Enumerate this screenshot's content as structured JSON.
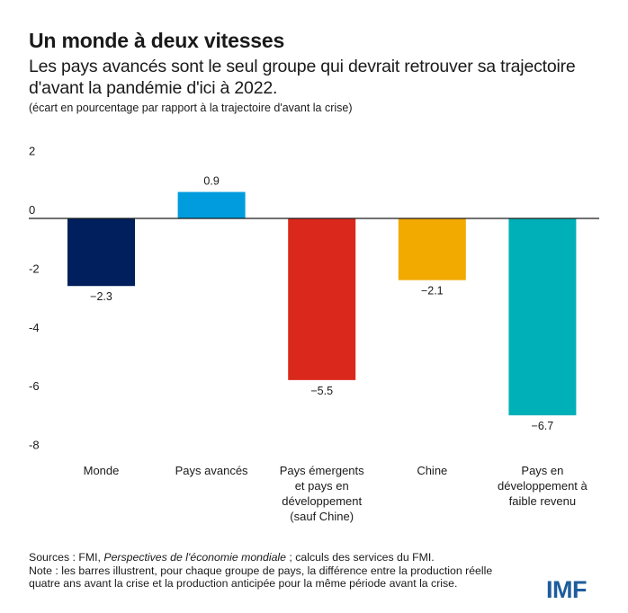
{
  "header": {
    "title": "Un monde à deux vitesses",
    "subtitle": "Les pays avancés sont le seul groupe qui devrait retrouver sa trajectoire d'avant la pandémie d'ici à 2022.",
    "unit_note": "(écart en pourcentage par rapport à la trajectoire d'avant la crise)"
  },
  "chart_data": {
    "type": "bar",
    "title": "Un monde à deux vitesses",
    "xlabel": "",
    "ylabel": "écart en pourcentage par rapport à la trajectoire d'avant la crise",
    "ylim": [
      -8,
      2
    ],
    "yticks": [
      2,
      0,
      -2,
      -4,
      -6,
      -8
    ],
    "ytick_labels": [
      "2",
      "0",
      "-2",
      "-4",
      "-6",
      "-8"
    ],
    "grid": false,
    "categories": [
      [
        "Monde"
      ],
      [
        "Pays avancés"
      ],
      [
        "Pays émergents",
        "et pays en",
        "développement",
        "(sauf Chine)"
      ],
      [
        "Chine"
      ],
      [
        "Pays en",
        "développement à",
        "faible revenu"
      ]
    ],
    "values": [
      -2.3,
      0.9,
      -5.5,
      -2.1,
      -6.7
    ],
    "value_labels": [
      "−2.3",
      "0.9",
      "−5.5",
      "−2.1",
      "−6.7"
    ],
    "colors": [
      "#001f5c",
      "#009cdd",
      "#da291c",
      "#f2a900",
      "#00b0b9"
    ]
  },
  "footer": {
    "sources_prefix": "Sources : FMI, ",
    "sources_italic": "Perspectives de l'économie mondiale",
    "sources_suffix": " ; calculs des services du FMI.",
    "note_line1": "Note : les barres illustrent, pour chaque groupe de pays, la différence entre la  production réelle",
    "note_line2": "quatre ans avant la crise et la production anticipée pour la même période avant la crise."
  },
  "logo": {
    "text": "IMF",
    "color": "#1d5c9c"
  }
}
